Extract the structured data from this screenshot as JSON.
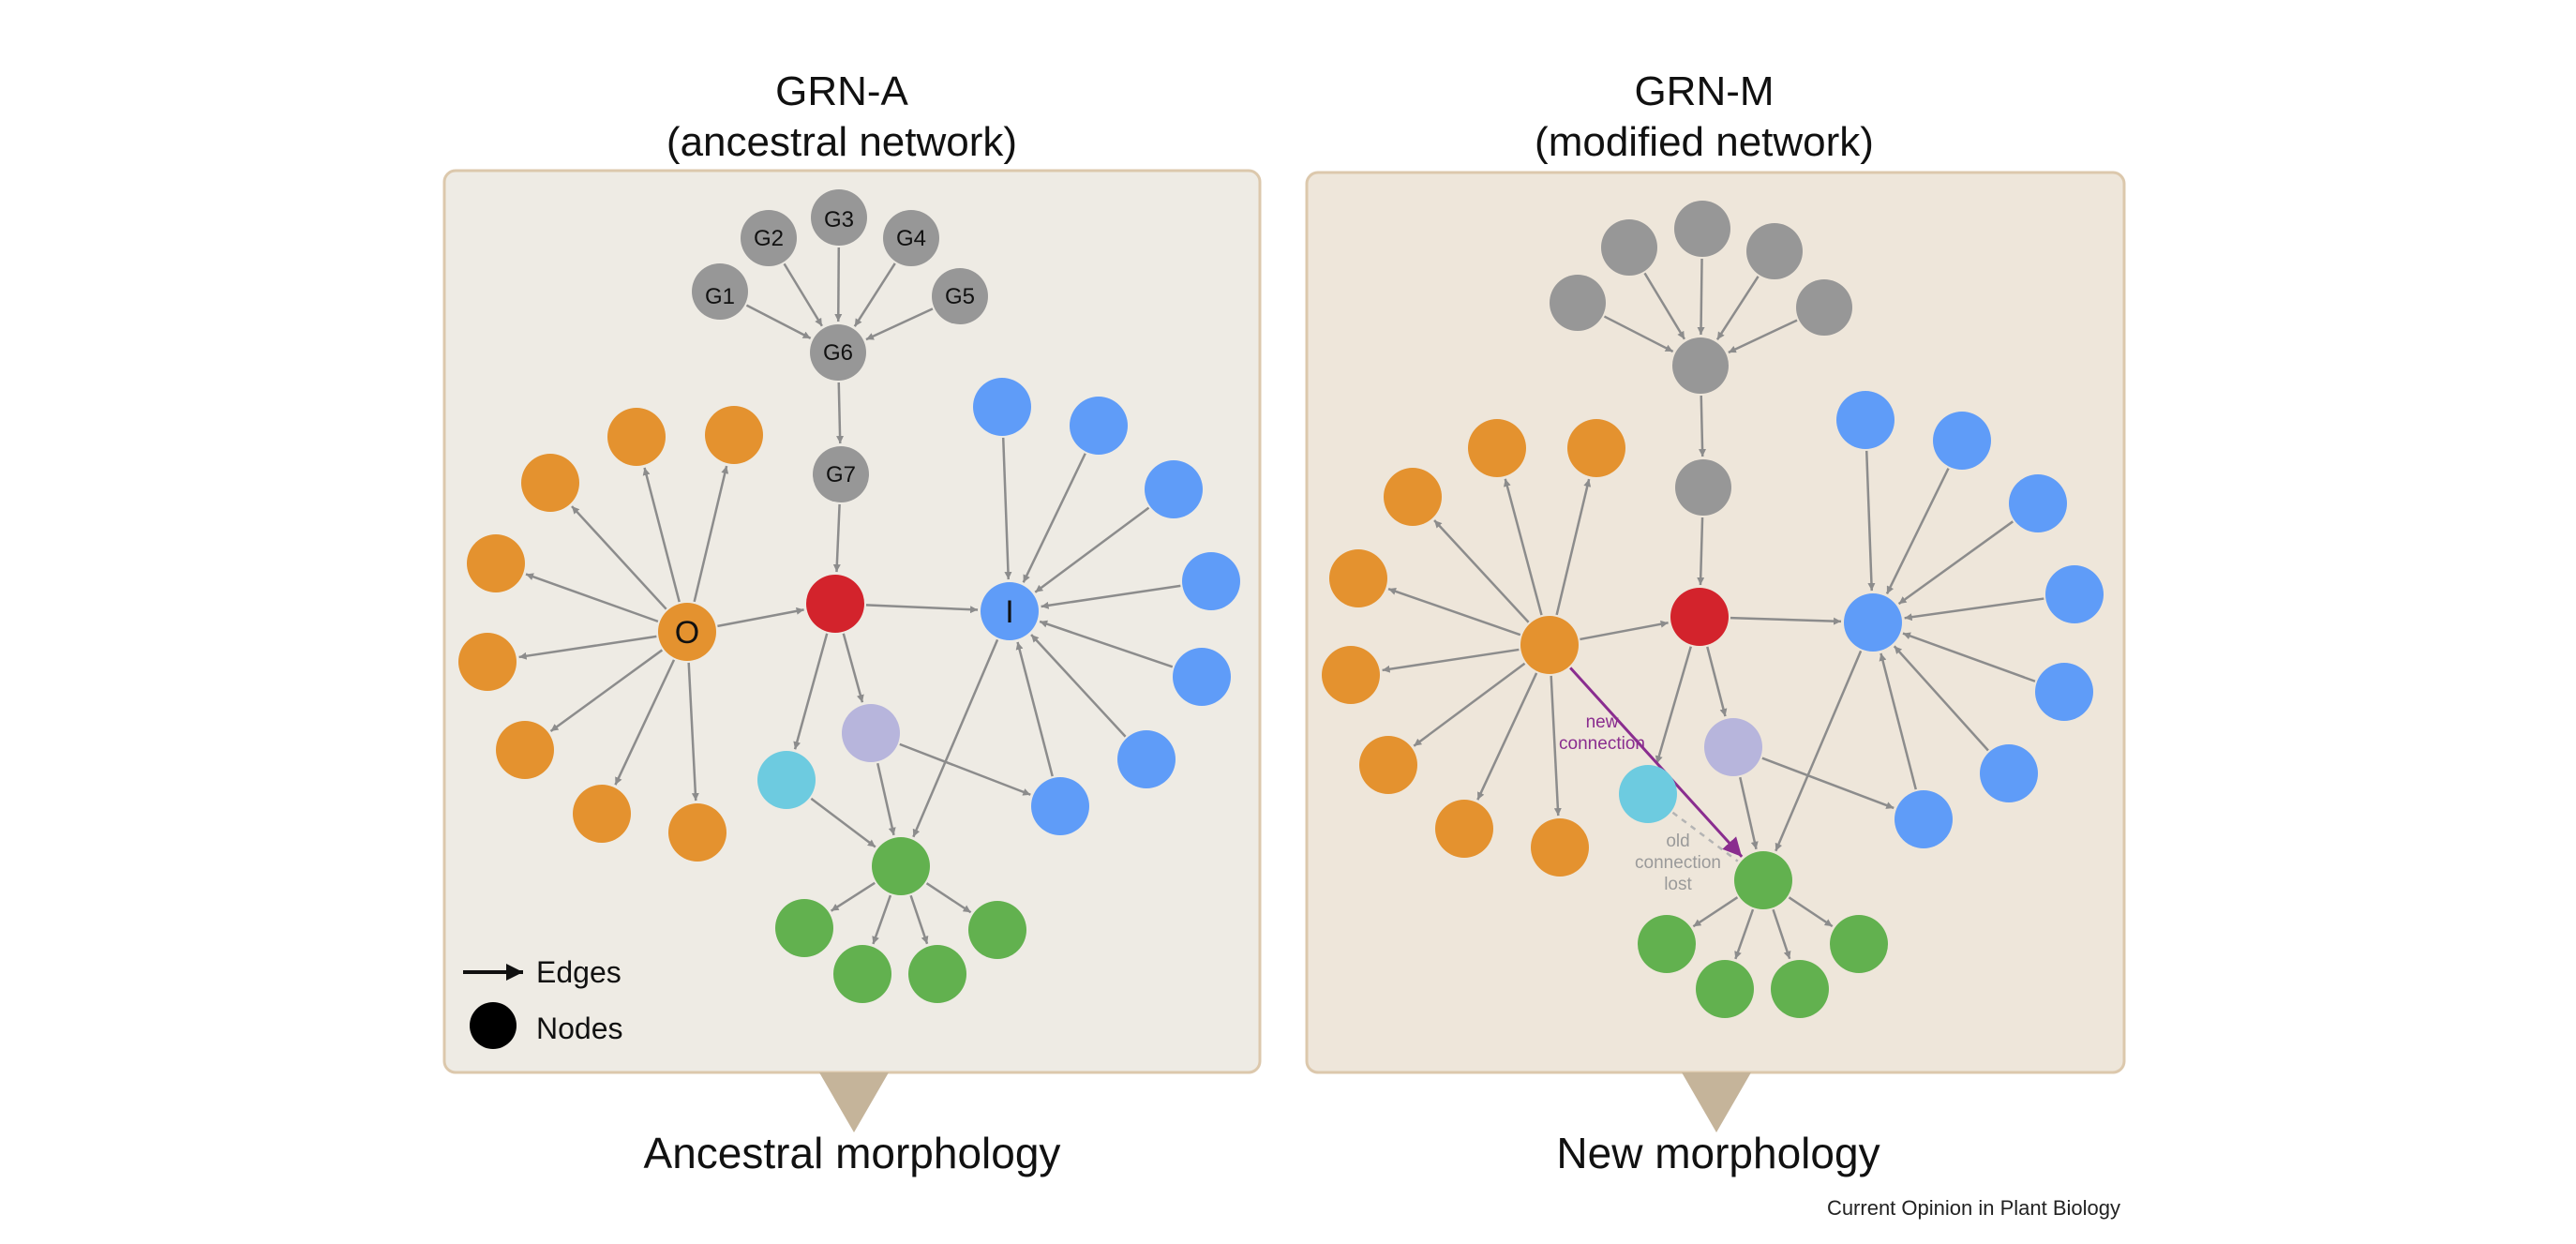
{
  "colors": {
    "grey": "#979797",
    "orange": "#e4922f",
    "red": "#d3232c",
    "blue": "#5f9cf8",
    "cyan": "#6dcbe0",
    "lavender": "#b7b5dc",
    "green": "#62b14f",
    "edge": "#8c8c8c",
    "new_edge": "#8a2d8f",
    "panel_fill_a": "#eeebe4",
    "panel_fill_m": "#eee6da",
    "panel_border": "#dcc8ac",
    "pointer": "#c5b49a"
  },
  "left_panel": {
    "title_line1": "GRN-A",
    "title_line2": "(ancestral network)",
    "caption": "Ancestral morphology",
    "labels": {
      "g1": "G1",
      "g2": "G2",
      "g3": "G3",
      "g4": "G4",
      "g5": "G5",
      "g6": "G6",
      "g7": "G7",
      "o": "O",
      "i": "I"
    },
    "legend": {
      "edges": "Edges",
      "nodes": "Nodes"
    }
  },
  "right_panel": {
    "title_line1": "GRN-M",
    "title_line2": "(modified network)",
    "caption": "New morphology",
    "annotation_new": [
      "new",
      "connection"
    ],
    "annotation_old": [
      "old",
      "connection",
      "lost"
    ]
  },
  "credit": "Current Opinion in Plant Biology"
}
